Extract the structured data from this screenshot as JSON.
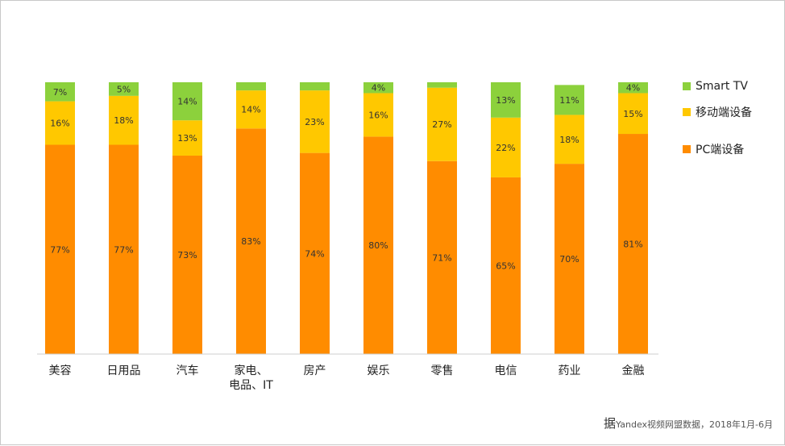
{
  "chart_data": {
    "type": "bar",
    "stacked": true,
    "title": "",
    "xlabel": "",
    "ylabel": "",
    "ylim": [
      0,
      100
    ],
    "grid": false,
    "legend_position": "right",
    "categories": [
      "美容",
      "日用品",
      "汽车",
      "家电、电品、IT",
      "房产",
      "娱乐",
      "零售",
      "电信",
      "药业",
      "金融"
    ],
    "series": [
      {
        "name": "PC端设备",
        "color": "#FF8C00",
        "values": [
          77,
          77,
          73,
          83,
          74,
          80,
          71,
          65,
          70,
          81
        ],
        "labels": [
          "77%",
          "77%",
          "73%",
          "83%",
          "74%",
          "80%",
          "71%",
          "65%",
          "70%",
          "81%"
        ]
      },
      {
        "name": "移动端设备",
        "color": "#FFC800",
        "values": [
          16,
          18,
          13,
          14,
          23,
          16,
          27,
          22,
          18,
          15
        ],
        "labels": [
          "16%",
          "18%",
          "13%",
          "14%",
          "23%",
          "16%",
          "27%",
          "22%",
          "18%",
          "15%"
        ]
      },
      {
        "name": "Smart TV",
        "color": "#8CD13C",
        "values": [
          7,
          5,
          14,
          3,
          3,
          4,
          2,
          13,
          11,
          4
        ],
        "labels": [
          "7%",
          "5%",
          "14%",
          "",
          "",
          "4%",
          "",
          "13%",
          "11%",
          "4%"
        ]
      }
    ],
    "legend_order": [
      "Smart TV",
      "移动端设备",
      "PC端设备"
    ]
  },
  "category_lines": [
    [
      "美容"
    ],
    [
      "日用品"
    ],
    [
      "汽车"
    ],
    [
      "家电、",
      "电品、IT"
    ],
    [
      "房产"
    ],
    [
      "娱乐"
    ],
    [
      "零售"
    ],
    [
      "电信"
    ],
    [
      "药业"
    ],
    [
      "金融"
    ]
  ],
  "source": {
    "prefix": "据",
    "text": "Yandex视频网盟数据，2018年1月-6月"
  }
}
